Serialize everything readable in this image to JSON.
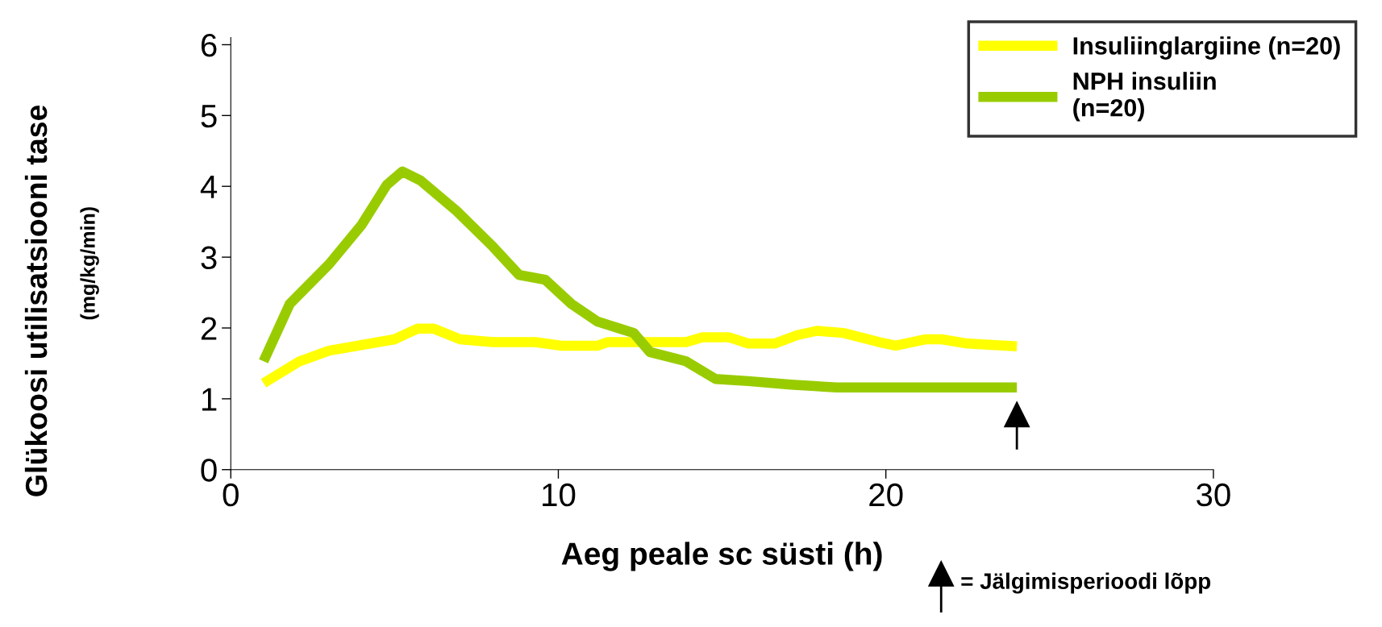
{
  "chart_data": {
    "type": "line",
    "xlabel": "Aeg peale sc süsti (h)",
    "ylabel": "Glükoosi utilisatsiooni tase\n(mg/kg/min)",
    "xlim": [
      0,
      30
    ],
    "xticks": [
      0,
      10,
      20,
      30
    ],
    "ylim": [
      0,
      6.1
    ],
    "yticks": [
      0,
      1,
      2,
      3,
      4,
      5,
      6
    ],
    "grid": false,
    "legend": "top right",
    "marker": "none",
    "line_style": "solid",
    "series": [
      {
        "name": "Insuliinglargiine (n=20)",
        "color": "#ffff00",
        "x": [
          1.0,
          2.1,
          3.0,
          5.0,
          5.7,
          6.2,
          7.0,
          8.0,
          9.3,
          10.1,
          11.2,
          11.5,
          13.9,
          14.4,
          15.2,
          15.8,
          16.6,
          17.3,
          17.9,
          18.7,
          19.8,
          20.3,
          21.2,
          21.7,
          22.5,
          24.0
        ],
        "values": [
          1.22,
          1.53,
          1.68,
          1.84,
          1.99,
          1.99,
          1.84,
          1.8,
          1.8,
          1.75,
          1.75,
          1.8,
          1.8,
          1.87,
          1.87,
          1.78,
          1.78,
          1.9,
          1.96,
          1.93,
          1.8,
          1.75,
          1.84,
          1.84,
          1.78,
          1.74
        ]
      },
      {
        "name": "NPH insuliin\n(n=20)",
        "color": "#99cc00",
        "x": [
          1.0,
          1.8,
          3.0,
          4.0,
          4.76,
          5.24,
          5.8,
          6.9,
          8.0,
          8.8,
          9.6,
          10.4,
          11.2,
          12.3,
          12.8,
          13.9,
          14.8,
          15.8,
          17.1,
          18.5,
          19.8,
          21.2,
          24.0
        ],
        "values": [
          1.53,
          2.34,
          2.9,
          3.46,
          4.02,
          4.21,
          4.08,
          3.65,
          3.15,
          2.75,
          2.68,
          2.34,
          2.09,
          1.93,
          1.66,
          1.53,
          1.28,
          1.25,
          1.2,
          1.16,
          1.16,
          1.16,
          1.16
        ]
      }
    ],
    "annotations": [
      "= Jälgimisperioodi lõpp"
    ]
  }
}
